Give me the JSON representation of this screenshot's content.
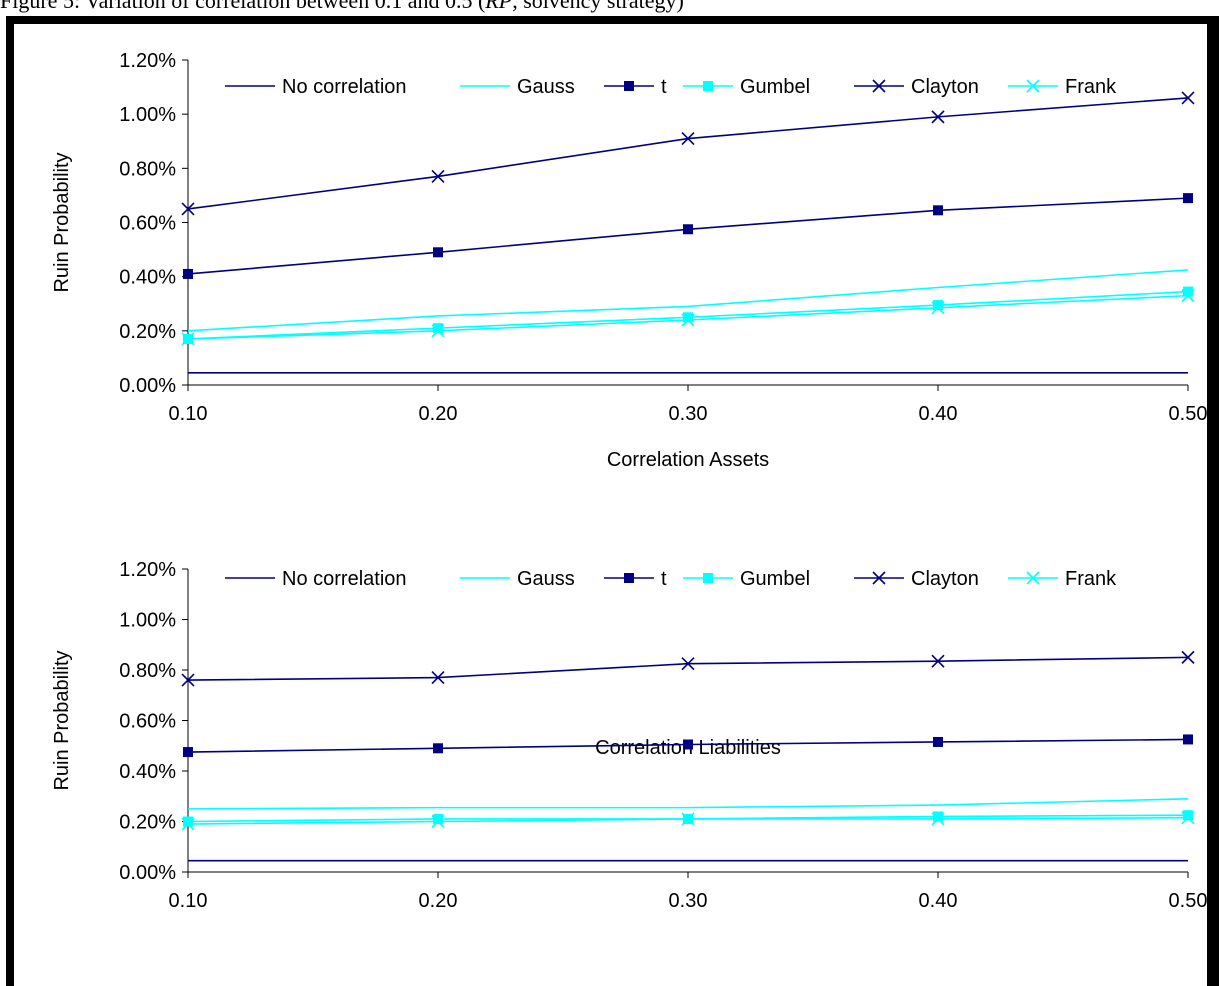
{
  "figure_title": {
    "prefix": "Figure 5: Variation of correlation between 0.1 and 0.5 (",
    "italic": "RP",
    "suffix": ", solvency strategy)"
  },
  "chart_data": [
    {
      "type": "line",
      "x": [
        0.1,
        0.2,
        0.3,
        0.4,
        0.5
      ],
      "x_tick_labels": [
        "0.10",
        "0.20",
        "0.30",
        "0.40",
        "0.50"
      ],
      "xlabel": "Correlation Assets",
      "ylabel": "Ruin Probability",
      "ylim": [
        0,
        1.2
      ],
      "y_ticks": [
        0,
        0.2,
        0.4,
        0.6,
        0.8,
        1.0,
        1.2
      ],
      "y_tick_labels": [
        "0.00%",
        "0.20%",
        "0.40%",
        "0.60%",
        "0.80%",
        "1.00%",
        "1.20%"
      ],
      "legend_position": "top",
      "grid": false,
      "series": [
        {
          "name": "No correlation",
          "values": [
            0.045,
            0.045,
            0.045,
            0.045,
            0.045
          ],
          "color": "#000080",
          "marker": "none"
        },
        {
          "name": "Gauss",
          "values": [
            0.2,
            0.255,
            0.29,
            0.36,
            0.425
          ],
          "color": "#00FFFF",
          "marker": "none"
        },
        {
          "name": "t",
          "values": [
            0.41,
            0.49,
            0.575,
            0.645,
            0.69
          ],
          "color": "#000080",
          "marker": "square"
        },
        {
          "name": "Gumbel",
          "values": [
            0.17,
            0.21,
            0.25,
            0.295,
            0.345
          ],
          "color": "#00FFFF",
          "marker": "square"
        },
        {
          "name": "Clayton",
          "values": [
            0.65,
            0.77,
            0.91,
            0.99,
            1.06
          ],
          "color": "#000080",
          "marker": "x"
        },
        {
          "name": "Frank",
          "values": [
            0.17,
            0.2,
            0.24,
            0.285,
            0.33
          ],
          "color": "#00FFFF",
          "marker": "x"
        }
      ]
    },
    {
      "type": "line",
      "x": [
        0.1,
        0.2,
        0.3,
        0.4,
        0.5
      ],
      "x_tick_labels": [
        "0.10",
        "0.20",
        "0.30",
        "0.40",
        "0.50"
      ],
      "xlabel": "Correlation Liabilities",
      "ylabel": "Ruin Probability",
      "ylim": [
        0,
        1.2
      ],
      "y_ticks": [
        0,
        0.2,
        0.4,
        0.6,
        0.8,
        1.0,
        1.2
      ],
      "y_tick_labels": [
        "0.00%",
        "0.20%",
        "0.40%",
        "0.60%",
        "0.80%",
        "1.00%",
        "1.20%"
      ],
      "legend_position": "top",
      "grid": false,
      "series": [
        {
          "name": "No correlation",
          "values": [
            0.045,
            0.045,
            0.045,
            0.045,
            0.045
          ],
          "color": "#000080",
          "marker": "none"
        },
        {
          "name": "Gauss",
          "values": [
            0.25,
            0.255,
            0.255,
            0.265,
            0.29
          ],
          "color": "#00FFFF",
          "marker": "none"
        },
        {
          "name": "t",
          "values": [
            0.475,
            0.49,
            0.505,
            0.515,
            0.525
          ],
          "color": "#000080",
          "marker": "square"
        },
        {
          "name": "Gumbel",
          "values": [
            0.2,
            0.21,
            0.21,
            0.22,
            0.225
          ],
          "color": "#00FFFF",
          "marker": "square"
        },
        {
          "name": "Clayton",
          "values": [
            0.76,
            0.77,
            0.825,
            0.835,
            0.85
          ],
          "color": "#000080",
          "marker": "x"
        },
        {
          "name": "Frank",
          "values": [
            0.19,
            0.2,
            0.21,
            0.21,
            0.215
          ],
          "color": "#00FFFF",
          "marker": "x"
        }
      ]
    }
  ]
}
